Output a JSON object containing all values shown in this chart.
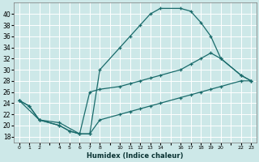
{
  "xlabel": "Humidex (Indice chaleur)",
  "bg_color": "#cde8e8",
  "grid_color": "#ffffff",
  "line_color": "#1a6b6b",
  "ylim": [
    17,
    42
  ],
  "xlim": [
    -0.5,
    23.5
  ],
  "yticks": [
    18,
    20,
    22,
    24,
    26,
    28,
    30,
    32,
    34,
    36,
    38,
    40
  ],
  "xtick_labels": [
    "0",
    "1",
    "2",
    "",
    "4",
    "5",
    "6",
    "7",
    "8",
    "",
    "10",
    "11",
    "12",
    "13",
    "14",
    "",
    "16",
    "17",
    "18",
    "19",
    "20",
    "",
    "22",
    "23"
  ],
  "series": [
    {
      "x": [
        0,
        1,
        2,
        4,
        5,
        6,
        7,
        8,
        10,
        11,
        12,
        13,
        14,
        16,
        17,
        18,
        19,
        20,
        22,
        23
      ],
      "y": [
        24.5,
        23.5,
        21,
        20,
        19,
        18.5,
        18.5,
        30,
        34,
        36,
        38,
        40,
        41,
        41,
        40.5,
        38.5,
        36,
        32,
        29,
        28
      ]
    },
    {
      "x": [
        0,
        1,
        2,
        4,
        5,
        6,
        7,
        8,
        10,
        11,
        12,
        13,
        14,
        16,
        17,
        18,
        19,
        20,
        22,
        23
      ],
      "y": [
        24.5,
        23.5,
        21,
        20,
        19,
        18.5,
        26,
        26.5,
        27,
        27.5,
        28,
        28.5,
        29,
        30,
        31,
        32,
        33,
        32,
        29,
        28
      ]
    },
    {
      "x": [
        0,
        2,
        4,
        6,
        7,
        8,
        10,
        11,
        12,
        13,
        14,
        16,
        17,
        18,
        19,
        20,
        22,
        23
      ],
      "y": [
        24.5,
        21,
        20.5,
        18.5,
        18.5,
        21,
        22,
        22.5,
        23,
        23.5,
        24,
        25,
        25.5,
        26,
        26.5,
        27,
        28,
        28
      ]
    }
  ]
}
